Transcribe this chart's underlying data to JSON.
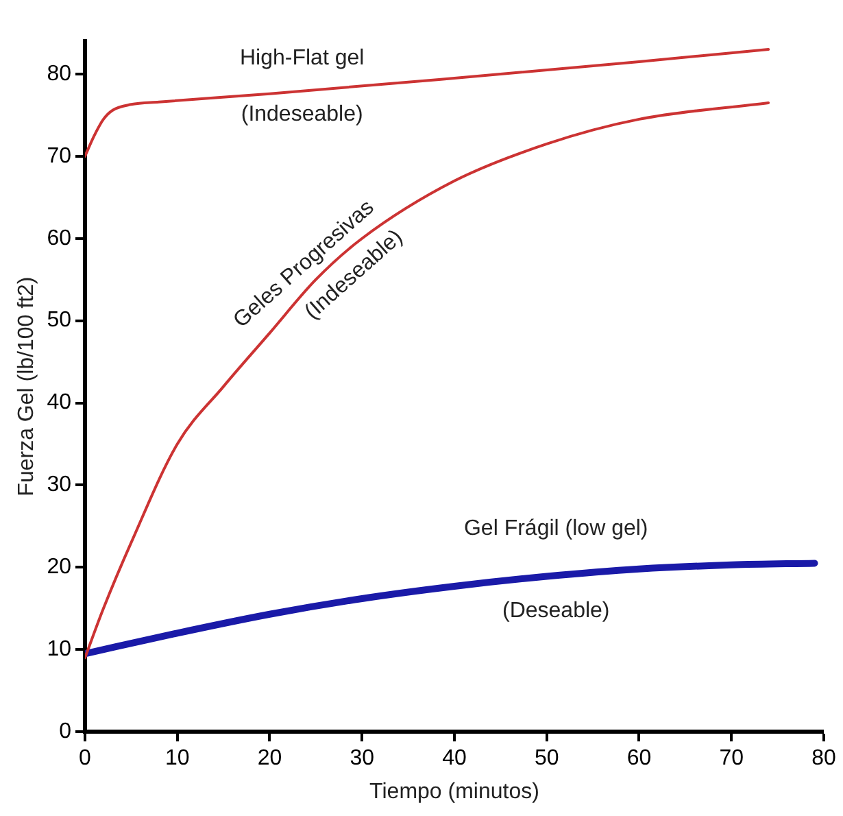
{
  "chart_data": {
    "type": "line",
    "xlabel": "Tiempo (minutos)",
    "ylabel": "Fuerza Gel (lb/100 ft2)",
    "xlim": [
      0,
      80
    ],
    "xticks": [
      0,
      10,
      20,
      30,
      40,
      50,
      60,
      70,
      80
    ],
    "ylim": [
      0,
      84
    ],
    "yticks": [
      0,
      10,
      20,
      30,
      40,
      50,
      60,
      70,
      80
    ],
    "grid": false,
    "legend": false,
    "marker": "none",
    "line_style": "solid",
    "series": [
      {
        "name": "High-Flat gel (Indeseable)",
        "color": "#cc3333",
        "x": [
          0,
          1,
          2,
          3,
          5,
          8,
          20,
          40,
          60,
          74
        ],
        "values": [
          70,
          72.5,
          74.5,
          75.6,
          76.3,
          76.6,
          77.6,
          79.5,
          81.5,
          83
        ]
      },
      {
        "name": "Geles Progresivas (Indeseable)",
        "color": "#cc3333",
        "x": [
          0,
          2,
          5,
          10,
          15,
          20,
          25,
          30,
          40,
          50,
          60,
          74
        ],
        "values": [
          9,
          15,
          23,
          35,
          42,
          48.5,
          55,
          60,
          67,
          71.5,
          74.5,
          76.5
        ]
      },
      {
        "name": "Gel Frágil (low gel) (Deseable)",
        "color": "#1a1aa8",
        "x": [
          0,
          10,
          20,
          30,
          40,
          50,
          60,
          70,
          79
        ],
        "values": [
          9.5,
          12,
          14.3,
          16.2,
          17.7,
          18.9,
          19.8,
          20.3,
          20.5
        ]
      }
    ]
  }
}
